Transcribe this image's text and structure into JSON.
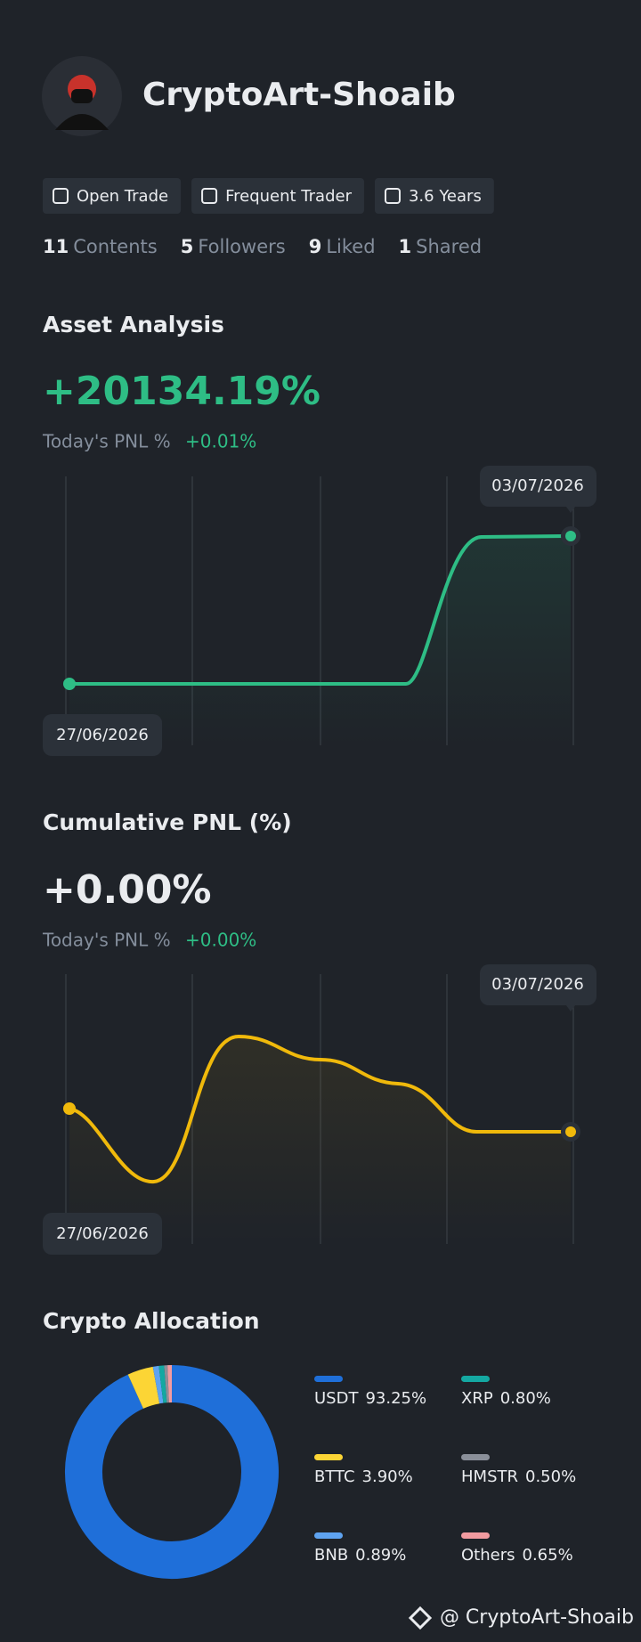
{
  "profile": {
    "name": "CryptoArt-Shoaib",
    "badges": [
      "Open Trade",
      "Frequent Trader",
      "3.6 Years"
    ],
    "stats": [
      {
        "count": 11,
        "label": "Contents"
      },
      {
        "count": 5,
        "label": "Followers"
      },
      {
        "count": 9,
        "label": "Liked"
      },
      {
        "count": 1,
        "label": "Shared"
      }
    ]
  },
  "asset_analysis": {
    "title": "Asset Analysis",
    "value": "+20134.19%",
    "today_label": "Today's PNL %",
    "today_value": "+0.01%",
    "start_date": "27/06/2026",
    "end_date": "03/07/2026"
  },
  "cumulative_pnl": {
    "title": "Cumulative PNL (%)",
    "value": "+0.00%",
    "today_label": "Today's PNL %",
    "today_value": "+0.00%",
    "start_date": "27/06/2026",
    "end_date": "03/07/2026"
  },
  "allocation": {
    "title": "Crypto Allocation",
    "categories": [
      "USDT",
      "BTTC",
      "BNB",
      "XRP",
      "HMSTR",
      "Others"
    ],
    "values": [
      93.25,
      3.9,
      0.89,
      0.8,
      0.5,
      0.65
    ],
    "value_labels": [
      "93.25%",
      "3.90%",
      "0.89%",
      "0.80%",
      "0.50%",
      "0.65%"
    ],
    "colors": [
      "#1f6fd9",
      "#fcd535",
      "#5ea3f0",
      "#14a8a2",
      "#8a8f99",
      "#f29ba0"
    ]
  },
  "footer": "@ CryptoArt-Shoaib"
}
